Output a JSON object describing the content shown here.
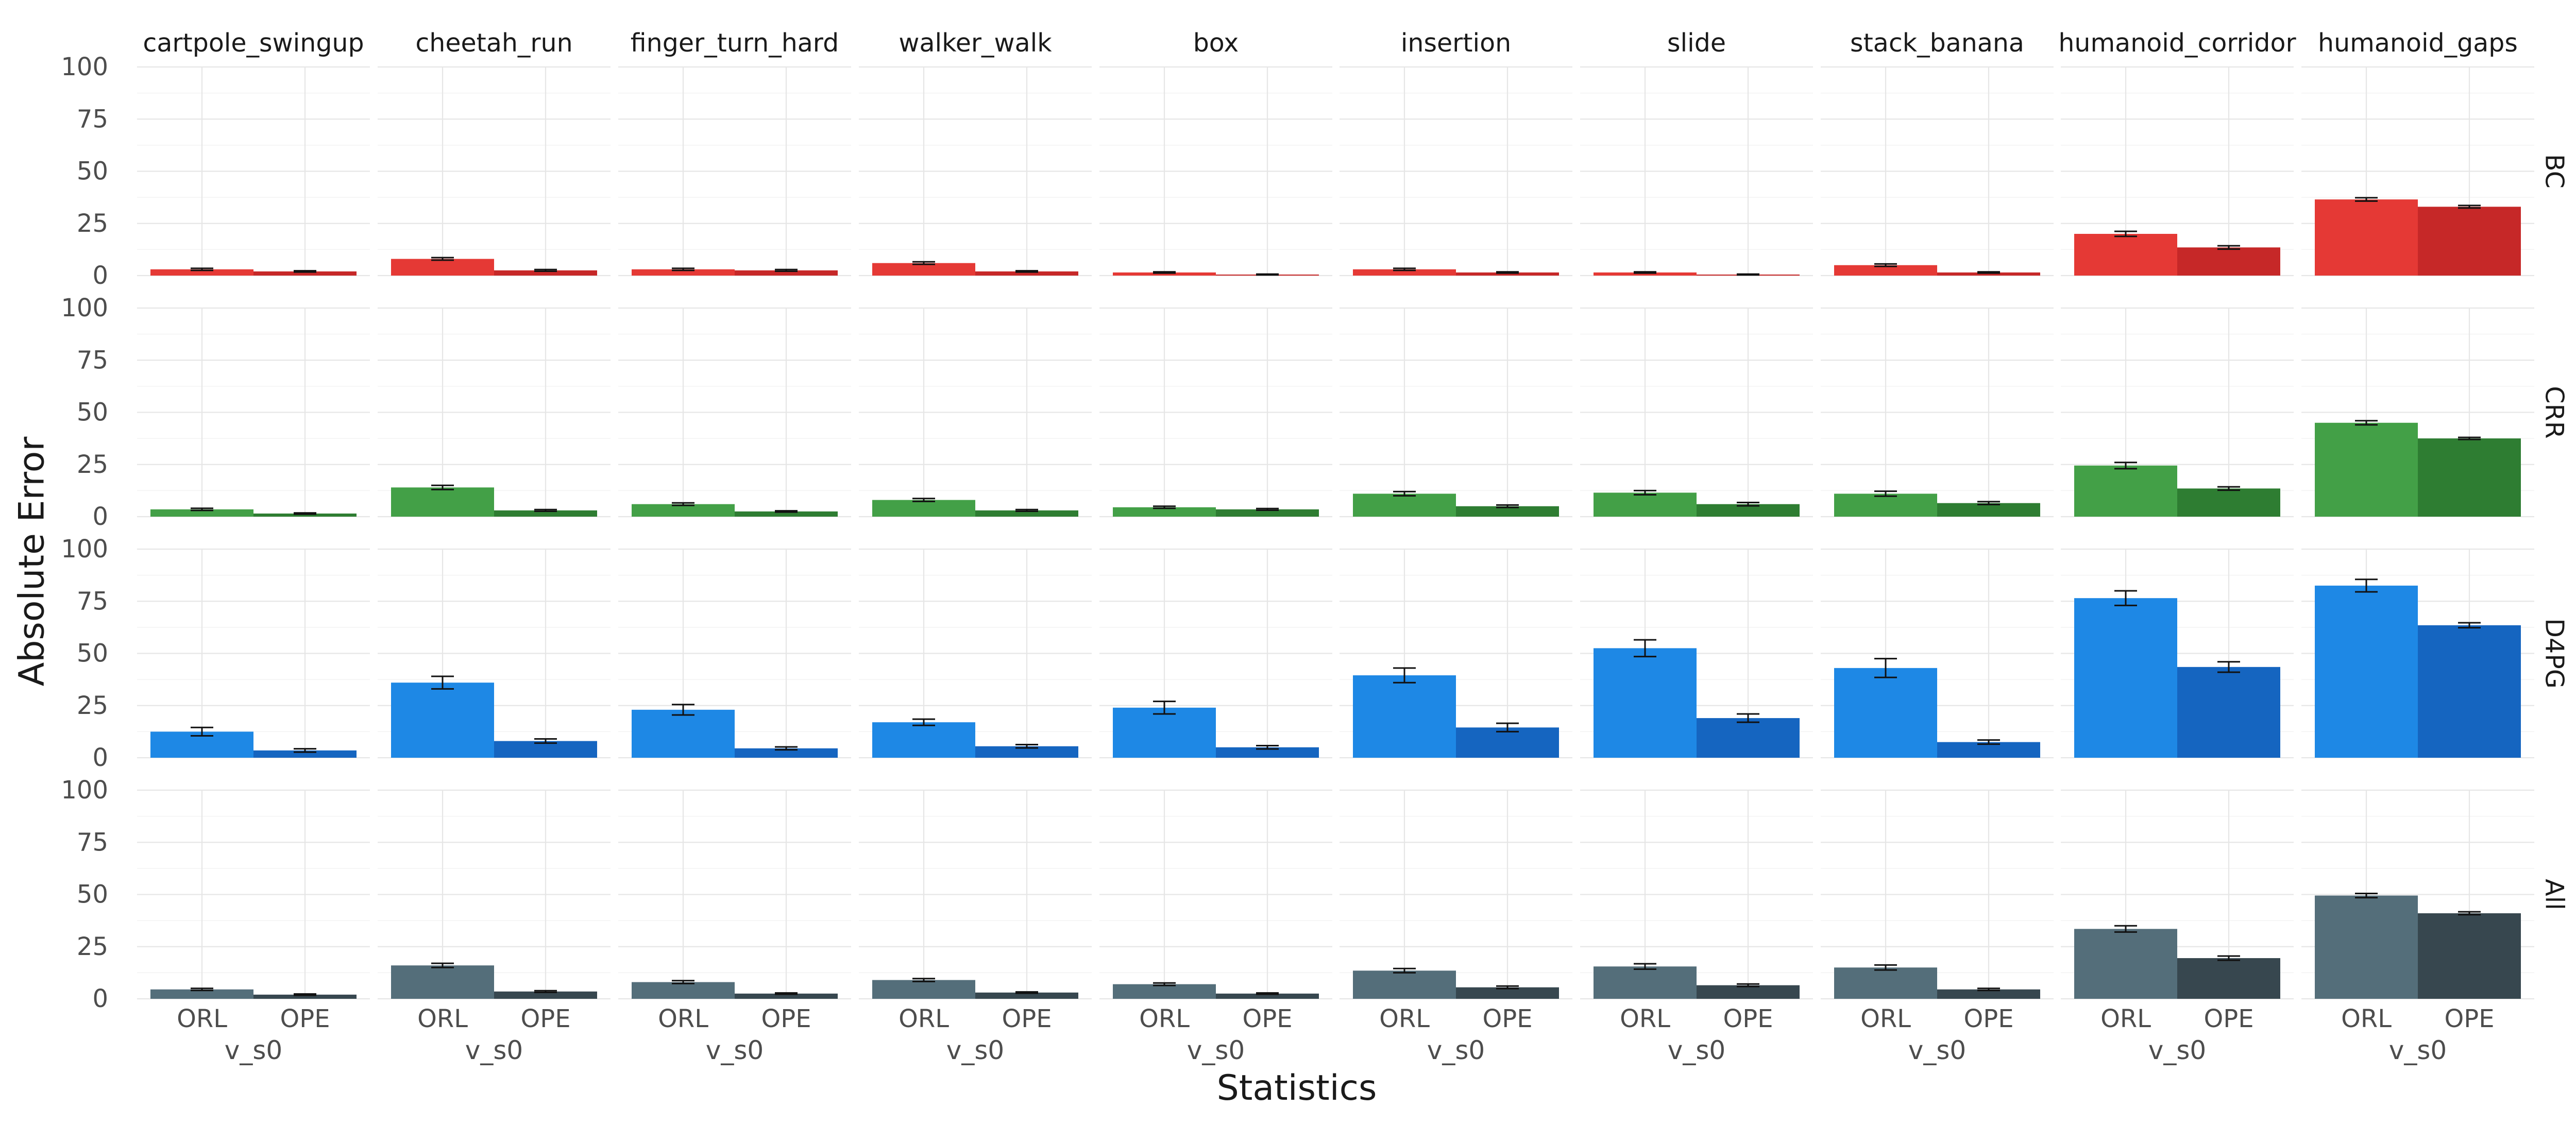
{
  "chart_data": {
    "type": "bar",
    "faceted": true,
    "ylabel": "Absolute Error",
    "xlabel": "Statistics",
    "panel_xlabel": "v_s0",
    "x_categories": [
      "ORL",
      "OPE"
    ],
    "ylim": [
      0,
      100
    ],
    "yticks": [
      0,
      25,
      50,
      75,
      100
    ],
    "columns": [
      "cartpole_swingup",
      "cheetah_run",
      "finger_turn_hard",
      "walker_walk",
      "box",
      "insertion",
      "slide",
      "stack_banana",
      "humanoid_corridor",
      "humanoid_gaps"
    ],
    "rows": [
      {
        "name": "BC",
        "colors": {
          "ORL": "#E53935",
          "OPE": "#C62828"
        },
        "values": {
          "ORL": [
            3,
            8,
            3,
            6,
            1.5,
            3,
            1.5,
            5,
            20,
            36.5
          ],
          "OPE": [
            2,
            2.5,
            2.5,
            2,
            0.5,
            1.5,
            0.5,
            1.5,
            13.5,
            33
          ]
        },
        "errors": {
          "ORL": [
            0.5,
            0.6,
            0.5,
            0.6,
            0.3,
            0.5,
            0.3,
            0.6,
            1.2,
            0.8
          ],
          "OPE": [
            0.3,
            0.4,
            0.4,
            0.3,
            0.2,
            0.3,
            0.2,
            0.3,
            0.8,
            0.6
          ]
        }
      },
      {
        "name": "CRR",
        "colors": {
          "ORL": "#43A047",
          "OPE": "#2E7D32"
        },
        "values": {
          "ORL": [
            3.5,
            14,
            6,
            8,
            4.5,
            11,
            11.5,
            11,
            24.5,
            45
          ],
          "OPE": [
            1.5,
            3,
            2.5,
            3,
            3.5,
            5,
            6,
            6.5,
            13.5,
            37.5
          ]
        },
        "errors": {
          "ORL": [
            0.5,
            1,
            0.6,
            0.7,
            0.5,
            1,
            1,
            1.2,
            1.5,
            1
          ],
          "OPE": [
            0.3,
            0.4,
            0.3,
            0.4,
            0.4,
            0.6,
            0.8,
            0.7,
            0.8,
            0.5
          ]
        }
      },
      {
        "name": "D4PG",
        "colors": {
          "ORL": "#1E88E5",
          "OPE": "#1565C0"
        },
        "values": {
          "ORL": [
            12.5,
            36,
            23,
            17,
            24,
            39.5,
            52.5,
            43,
            76.5,
            82.5
          ],
          "OPE": [
            3.5,
            8,
            4.5,
            5.5,
            5,
            14.5,
            19,
            7.5,
            43.5,
            63.5
          ]
        },
        "errors": {
          "ORL": [
            2,
            3,
            2.5,
            1.5,
            3,
            3.5,
            4,
            4.5,
            3.5,
            3
          ],
          "OPE": [
            0.8,
            1,
            0.7,
            0.8,
            0.8,
            2,
            2,
            1,
            2.5,
            1.2
          ]
        }
      },
      {
        "name": "All",
        "colors": {
          "ORL": "#546E7A",
          "OPE": "#37474F"
        },
        "values": {
          "ORL": [
            4.5,
            16,
            8,
            9,
            7,
            13.5,
            15.5,
            15,
            33.5,
            49.5
          ],
          "OPE": [
            2,
            3.5,
            2.5,
            3,
            2.5,
            5.5,
            6.5,
            4.5,
            19.5,
            41
          ]
        },
        "errors": {
          "ORL": [
            0.5,
            1,
            0.7,
            0.7,
            0.6,
            1,
            1.3,
            1.2,
            1.5,
            1
          ],
          "OPE": [
            0.3,
            0.4,
            0.3,
            0.3,
            0.3,
            0.6,
            0.6,
            0.5,
            1,
            0.7
          ]
        }
      }
    ]
  }
}
